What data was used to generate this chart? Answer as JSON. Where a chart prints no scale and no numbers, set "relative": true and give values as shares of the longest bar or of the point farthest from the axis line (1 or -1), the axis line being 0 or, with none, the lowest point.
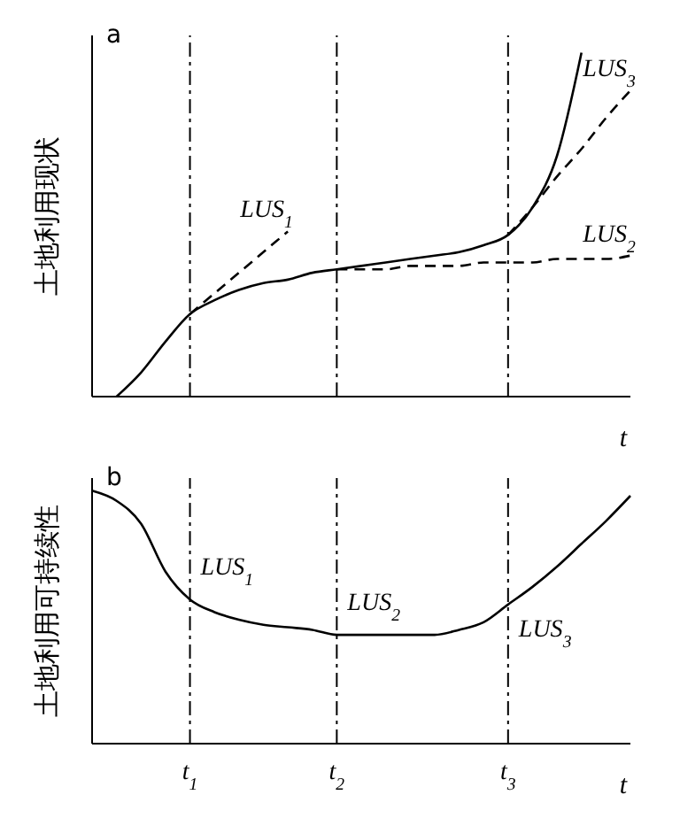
{
  "chart_data": [
    {
      "type": "line",
      "title": "a",
      "xlabel": "t",
      "ylabel": "土地利用现状",
      "relative": true,
      "tick_labels": false,
      "categories": [
        null,
        null,
        null,
        null,
        "t$_{1}$",
        null,
        null,
        null,
        null,
        null,
        "t$_{2}$",
        null,
        null,
        null,
        null,
        null,
        null,
        "t$_{3}$",
        null,
        null,
        null,
        null,
        null
      ],
      "series": [
        {
          "color": "#000000",
          "line_style": "solid",
          "values": [
            null,
            0.0,
            0.07,
            0.16,
            0.24,
            0.28,
            0.31,
            0.33,
            0.34,
            0.36,
            0.37,
            0.38,
            0.39,
            0.4,
            0.41,
            0.42,
            0.44,
            0.47,
            0.55,
            0.7,
            1.0,
            null,
            null
          ]
        },
        {
          "name": "LUS$_{1}$",
          "color": "#000000",
          "line_style": "dashed",
          "values": [
            null,
            null,
            null,
            null,
            0.24,
            0.3,
            0.36,
            0.42,
            0.48,
            null,
            null,
            null,
            null,
            null,
            null,
            null,
            null,
            null,
            null,
            null,
            null,
            null,
            null
          ]
        },
        {
          "name": "LUS$_{2}$",
          "color": "#000000",
          "line_style": "dashed",
          "values": [
            null,
            null,
            null,
            null,
            null,
            null,
            null,
            null,
            null,
            null,
            0.37,
            0.37,
            0.37,
            0.38,
            0.38,
            0.38,
            0.39,
            0.39,
            0.39,
            0.4,
            0.4,
            0.4,
            0.41
          ]
        },
        {
          "name": "LUS$_{3}$",
          "color": "#000000",
          "line_style": "dashed",
          "values": [
            null,
            null,
            null,
            null,
            null,
            null,
            null,
            null,
            null,
            null,
            null,
            null,
            null,
            null,
            null,
            null,
            null,
            0.47,
            0.55,
            0.64,
            0.72,
            0.81,
            0.89
          ]
        }
      ],
      "ref_lines": [
        {
          "axis": "x",
          "value": "t$_{1}$",
          "line_style": "dashdot"
        },
        {
          "axis": "x",
          "value": "t$_{2}$",
          "line_style": "dashdot"
        },
        {
          "axis": "x",
          "value": "t$_{3}$",
          "line_style": "dashdot"
        }
      ]
    },
    {
      "type": "line",
      "title": "b",
      "xlabel": "t",
      "ylabel": "土地利用可持续性",
      "relative": true,
      "tick_labels": "x",
      "categories": [
        null,
        null,
        null,
        null,
        "t$_{1}$",
        null,
        null,
        null,
        null,
        null,
        "t$_{2}$",
        null,
        null,
        null,
        null,
        null,
        null,
        "t$_{3}$",
        null,
        null,
        null,
        null,
        null
      ],
      "series": [
        {
          "color": "#000000",
          "line_style": "solid",
          "values": [
            1.0,
            0.96,
            0.87,
            0.68,
            0.57,
            0.52,
            0.49,
            0.47,
            0.46,
            0.45,
            0.43,
            0.43,
            0.43,
            0.43,
            0.43,
            0.45,
            0.48,
            0.55,
            0.62,
            0.7,
            0.79,
            0.88,
            0.98
          ]
        }
      ],
      "ref_lines": [
        {
          "axis": "x",
          "value": "t$_{1}$",
          "line_style": "dashdot"
        },
        {
          "axis": "x",
          "value": "t$_{2}$",
          "line_style": "dashdot"
        },
        {
          "axis": "x",
          "value": "t$_{3}$",
          "line_style": "dashdot"
        }
      ],
      "annotations": [
        {
          "text": "LUS$_{1}$",
          "x": "t$_{1}$",
          "y": 0.57
        },
        {
          "text": "LUS$_{2}$",
          "x": "t$_{2}$",
          "y": 0.43
        },
        {
          "text": "LUS$_{3}$",
          "x": "t$_{3}$",
          "y": 0.55
        }
      ]
    }
  ]
}
